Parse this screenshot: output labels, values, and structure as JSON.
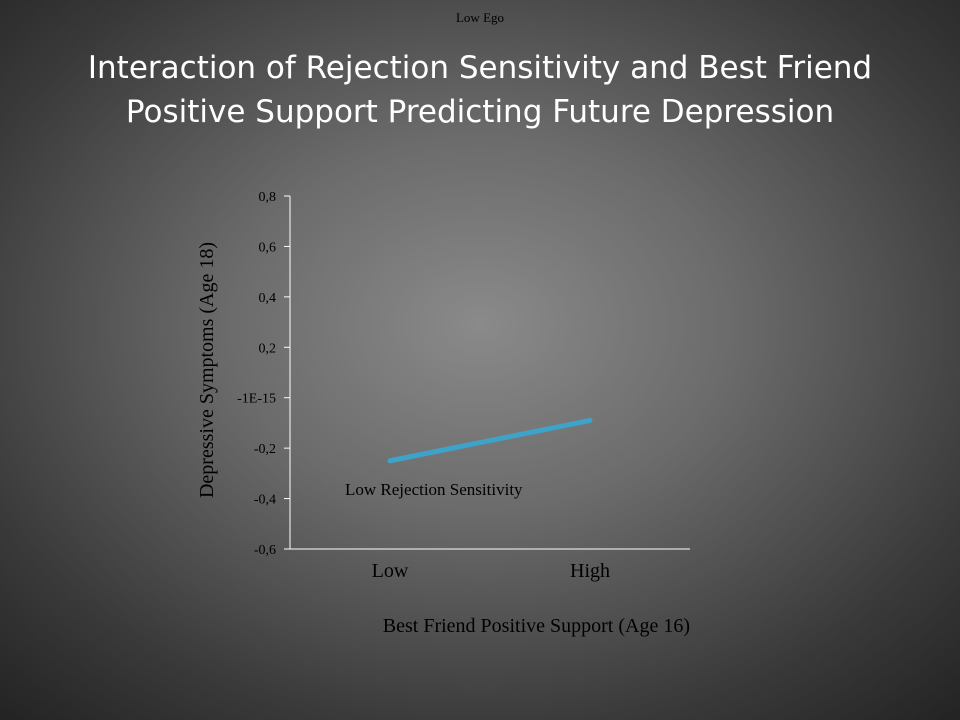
{
  "header": {
    "top_label": "Low Ego"
  },
  "title": "Interaction of Rejection Sensitivity and Best Friend Positive Support Predicting Future Depression",
  "colors": {
    "series": "#3ea3c8",
    "axis": "#ffffff"
  },
  "chart_data": {
    "type": "line",
    "title": "Interaction of Rejection Sensitivity and Best Friend Positive Support Predicting Future Depression",
    "xlabel": "Best Friend Positive Support (Age 16)",
    "ylabel": "Depressive Symptoms (Age 18)",
    "categories": [
      "Low",
      "High"
    ],
    "ylim": [
      -0.6,
      0.8
    ],
    "yticks": [
      0.8,
      0.6,
      0.4,
      0.2,
      0,
      -0.2,
      -0.4,
      -0.6
    ],
    "ytick_labels": [
      "0,8",
      "0,6",
      "0,4",
      "0,2",
      "-1E-15",
      "-0,2",
      "-0,4",
      "-0,6"
    ],
    "grid": false,
    "series": [
      {
        "name": "Low Rejection Sensitivity",
        "values": [
          -0.25,
          -0.09
        ]
      }
    ]
  }
}
